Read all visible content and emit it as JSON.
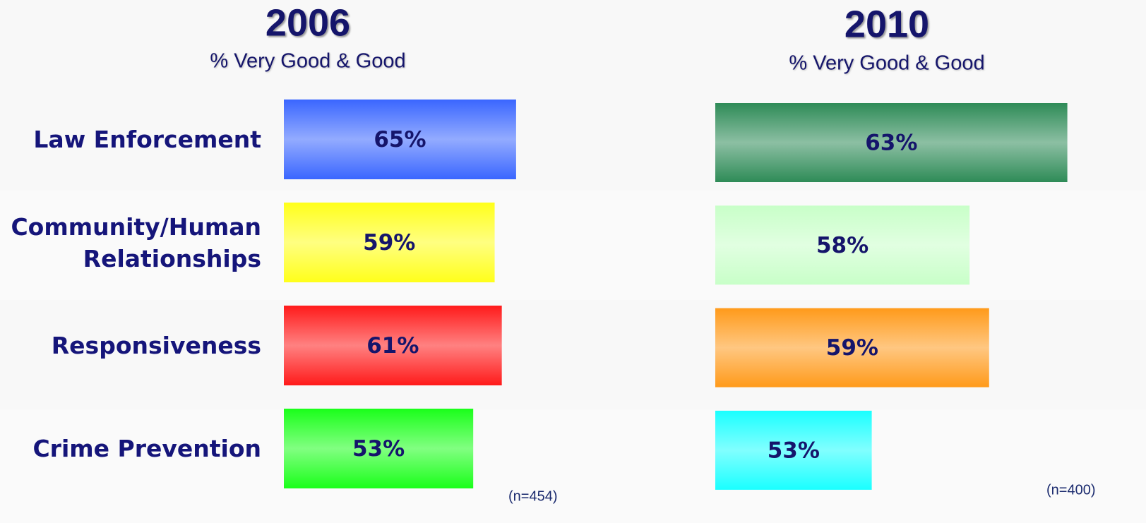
{
  "chart_data": [
    {
      "type": "bar",
      "orientation": "horizontal",
      "title": "2006",
      "subtitle": "% Very Good & Good",
      "categories": [
        "Law Enforcement",
        "Community/Human Relationships",
        "Responsiveness",
        "Crime Prevention"
      ],
      "values": [
        65,
        59,
        61,
        53
      ],
      "value_labels": [
        "65%",
        "59%",
        "61%",
        "53%"
      ],
      "colors": [
        "#3a66ff",
        "#ffff1a",
        "#ff1a1a",
        "#1aff1a"
      ],
      "xlim": [
        0,
        100
      ],
      "annotation": "(n=454)"
    },
    {
      "type": "bar",
      "orientation": "horizontal",
      "title": "2010",
      "subtitle": "% Very Good & Good",
      "values": [
        63,
        58,
        59,
        53
      ],
      "value_labels": [
        "63%",
        "58%",
        "59%",
        "53%"
      ],
      "colors": [
        "#2e8b57",
        "#c8ffc8",
        "#ff9a1a",
        "#1affff"
      ],
      "xlim": [
        45,
        65
      ],
      "annotation": "(n=400)"
    }
  ]
}
